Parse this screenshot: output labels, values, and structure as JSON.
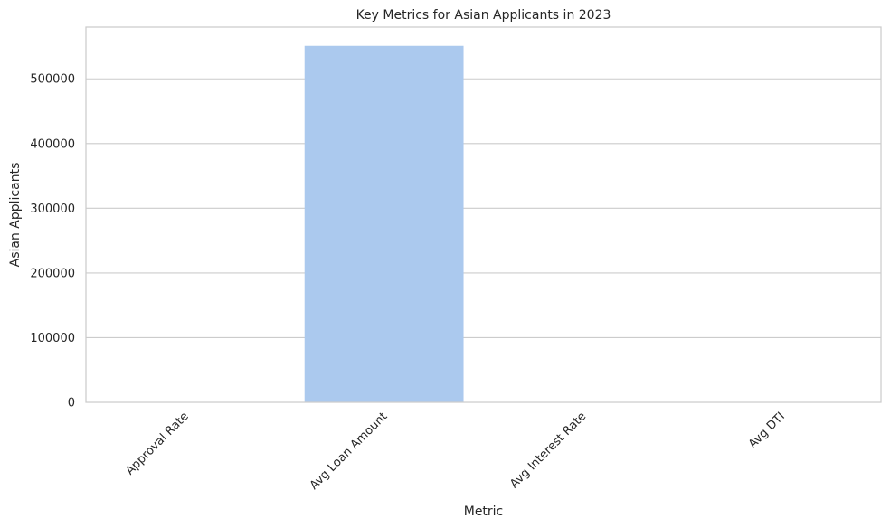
{
  "chart_data": {
    "type": "bar",
    "title": "Key Metrics for Asian Applicants in 2023",
    "xlabel": "Metric",
    "ylabel": "Asian Applicants",
    "categories": [
      "Approval Rate",
      "Avg Loan Amount",
      "Avg Interest Rate",
      "Avg DTI"
    ],
    "values": [
      0.7,
      551000,
      6.8,
      38
    ],
    "ylim": [
      0,
      580000
    ],
    "yticks": [
      0,
      100000,
      200000,
      300000,
      400000,
      500000
    ],
    "grid": true,
    "bar_color": "#abc9ee",
    "grid_color": "#cccccc"
  }
}
